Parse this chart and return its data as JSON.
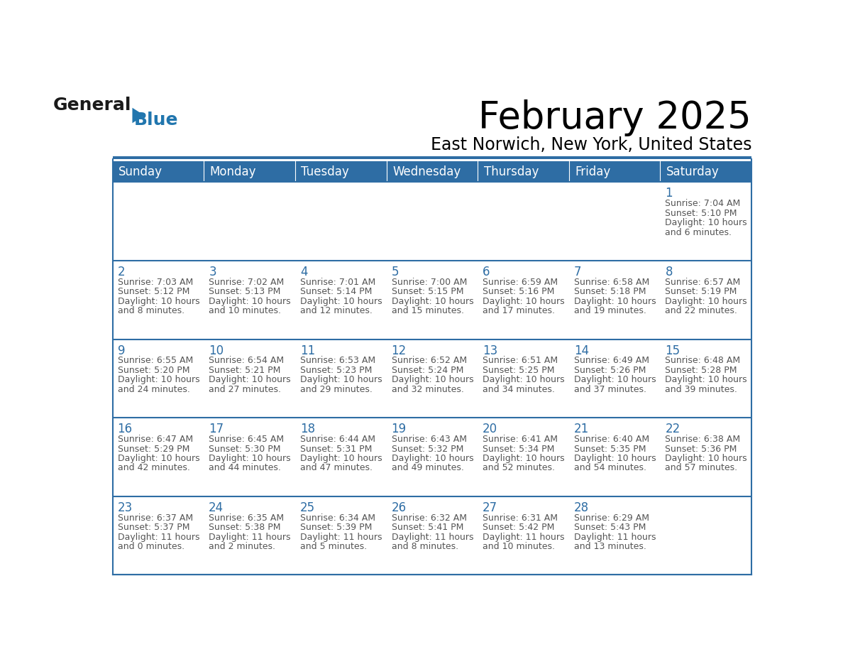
{
  "title": "February 2025",
  "subtitle": "East Norwich, New York, United States",
  "header_color": "#2E6DA4",
  "header_text_color": "#FFFFFF",
  "cell_bg_color": "#FFFFFF",
  "cell_alt_bg": "#F2F2F2",
  "cell_border_color": "#2E6DA4",
  "day_number_color": "#2E6DA4",
  "info_text_color": "#555555",
  "days_of_week": [
    "Sunday",
    "Monday",
    "Tuesday",
    "Wednesday",
    "Thursday",
    "Friday",
    "Saturday"
  ],
  "weeks": [
    [
      {
        "day": "",
        "sunrise": "",
        "sunset": "",
        "daylight_h": "",
        "daylight_m": ""
      },
      {
        "day": "",
        "sunrise": "",
        "sunset": "",
        "daylight_h": "",
        "daylight_m": ""
      },
      {
        "day": "",
        "sunrise": "",
        "sunset": "",
        "daylight_h": "",
        "daylight_m": ""
      },
      {
        "day": "",
        "sunrise": "",
        "sunset": "",
        "daylight_h": "",
        "daylight_m": ""
      },
      {
        "day": "",
        "sunrise": "",
        "sunset": "",
        "daylight_h": "",
        "daylight_m": ""
      },
      {
        "day": "",
        "sunrise": "",
        "sunset": "",
        "daylight_h": "",
        "daylight_m": ""
      },
      {
        "day": "1",
        "sunrise": "7:04 AM",
        "sunset": "5:10 PM",
        "daylight_h": "10",
        "daylight_m": "6"
      }
    ],
    [
      {
        "day": "2",
        "sunrise": "7:03 AM",
        "sunset": "5:12 PM",
        "daylight_h": "10",
        "daylight_m": "8"
      },
      {
        "day": "3",
        "sunrise": "7:02 AM",
        "sunset": "5:13 PM",
        "daylight_h": "10",
        "daylight_m": "10"
      },
      {
        "day": "4",
        "sunrise": "7:01 AM",
        "sunset": "5:14 PM",
        "daylight_h": "10",
        "daylight_m": "12"
      },
      {
        "day": "5",
        "sunrise": "7:00 AM",
        "sunset": "5:15 PM",
        "daylight_h": "10",
        "daylight_m": "15"
      },
      {
        "day": "6",
        "sunrise": "6:59 AM",
        "sunset": "5:16 PM",
        "daylight_h": "10",
        "daylight_m": "17"
      },
      {
        "day": "7",
        "sunrise": "6:58 AM",
        "sunset": "5:18 PM",
        "daylight_h": "10",
        "daylight_m": "19"
      },
      {
        "day": "8",
        "sunrise": "6:57 AM",
        "sunset": "5:19 PM",
        "daylight_h": "10",
        "daylight_m": "22"
      }
    ],
    [
      {
        "day": "9",
        "sunrise": "6:55 AM",
        "sunset": "5:20 PM",
        "daylight_h": "10",
        "daylight_m": "24"
      },
      {
        "day": "10",
        "sunrise": "6:54 AM",
        "sunset": "5:21 PM",
        "daylight_h": "10",
        "daylight_m": "27"
      },
      {
        "day": "11",
        "sunrise": "6:53 AM",
        "sunset": "5:23 PM",
        "daylight_h": "10",
        "daylight_m": "29"
      },
      {
        "day": "12",
        "sunrise": "6:52 AM",
        "sunset": "5:24 PM",
        "daylight_h": "10",
        "daylight_m": "32"
      },
      {
        "day": "13",
        "sunrise": "6:51 AM",
        "sunset": "5:25 PM",
        "daylight_h": "10",
        "daylight_m": "34"
      },
      {
        "day": "14",
        "sunrise": "6:49 AM",
        "sunset": "5:26 PM",
        "daylight_h": "10",
        "daylight_m": "37"
      },
      {
        "day": "15",
        "sunrise": "6:48 AM",
        "sunset": "5:28 PM",
        "daylight_h": "10",
        "daylight_m": "39"
      }
    ],
    [
      {
        "day": "16",
        "sunrise": "6:47 AM",
        "sunset": "5:29 PM",
        "daylight_h": "10",
        "daylight_m": "42"
      },
      {
        "day": "17",
        "sunrise": "6:45 AM",
        "sunset": "5:30 PM",
        "daylight_h": "10",
        "daylight_m": "44"
      },
      {
        "day": "18",
        "sunrise": "6:44 AM",
        "sunset": "5:31 PM",
        "daylight_h": "10",
        "daylight_m": "47"
      },
      {
        "day": "19",
        "sunrise": "6:43 AM",
        "sunset": "5:32 PM",
        "daylight_h": "10",
        "daylight_m": "49"
      },
      {
        "day": "20",
        "sunrise": "6:41 AM",
        "sunset": "5:34 PM",
        "daylight_h": "10",
        "daylight_m": "52"
      },
      {
        "day": "21",
        "sunrise": "6:40 AM",
        "sunset": "5:35 PM",
        "daylight_h": "10",
        "daylight_m": "54"
      },
      {
        "day": "22",
        "sunrise": "6:38 AM",
        "sunset": "5:36 PM",
        "daylight_h": "10",
        "daylight_m": "57"
      }
    ],
    [
      {
        "day": "23",
        "sunrise": "6:37 AM",
        "sunset": "5:37 PM",
        "daylight_h": "11",
        "daylight_m": "0"
      },
      {
        "day": "24",
        "sunrise": "6:35 AM",
        "sunset": "5:38 PM",
        "daylight_h": "11",
        "daylight_m": "2"
      },
      {
        "day": "25",
        "sunrise": "6:34 AM",
        "sunset": "5:39 PM",
        "daylight_h": "11",
        "daylight_m": "5"
      },
      {
        "day": "26",
        "sunrise": "6:32 AM",
        "sunset": "5:41 PM",
        "daylight_h": "11",
        "daylight_m": "8"
      },
      {
        "day": "27",
        "sunrise": "6:31 AM",
        "sunset": "5:42 PM",
        "daylight_h": "11",
        "daylight_m": "10"
      },
      {
        "day": "28",
        "sunrise": "6:29 AM",
        "sunset": "5:43 PM",
        "daylight_h": "11",
        "daylight_m": "13"
      },
      {
        "day": "",
        "sunrise": "",
        "sunset": "",
        "daylight_h": "",
        "daylight_m": ""
      }
    ]
  ],
  "logo_general_color": "#1a1a1a",
  "logo_blue_color": "#2176AE",
  "title_fontsize": 38,
  "subtitle_fontsize": 17,
  "header_fontsize": 12,
  "day_num_fontsize": 12,
  "info_fontsize": 9.0
}
